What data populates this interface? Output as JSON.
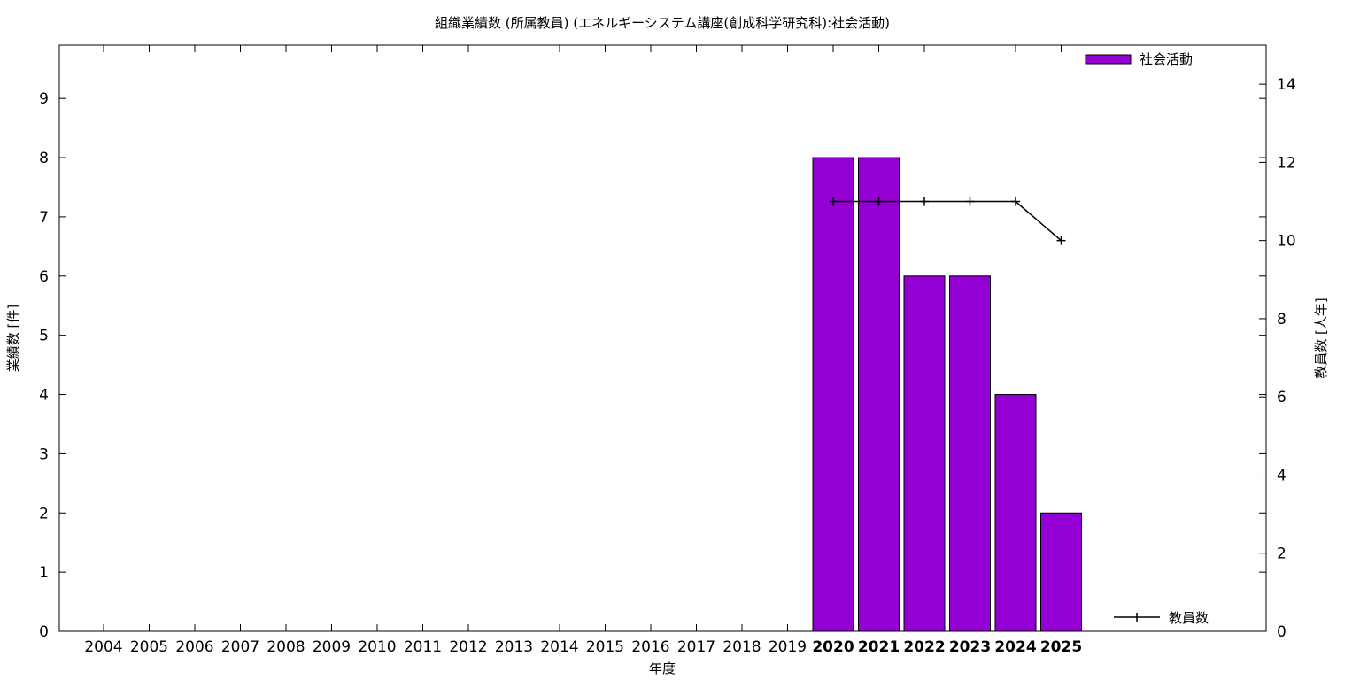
{
  "chart_data": {
    "type": "bar",
    "title": "組織業績数 (所属教員) (エネルギーシステム講座(創成科学研究科):社会活動)",
    "xlabel": "年度",
    "ylabel": "業績数 [件]",
    "y2label": "教員数 [人年]",
    "categories": [
      "2004",
      "2005",
      "2006",
      "2007",
      "2008",
      "2009",
      "2010",
      "2011",
      "2012",
      "2013",
      "2014",
      "2015",
      "2016",
      "2017",
      "2018",
      "2019",
      "2020",
      "2021",
      "2022",
      "2023",
      "2024",
      "2025"
    ],
    "ylim": [
      0,
      9.9
    ],
    "y2lim": [
      0,
      15
    ],
    "yticks": [
      0,
      1,
      2,
      3,
      4,
      5,
      6,
      7,
      8,
      9
    ],
    "y2ticks": [
      0,
      2,
      4,
      6,
      8,
      10,
      12,
      14
    ],
    "grid": false,
    "series": [
      {
        "name": "社会活動",
        "type": "bar",
        "axis": "left",
        "color": "#9400d3",
        "values": [
          null,
          null,
          null,
          null,
          null,
          null,
          null,
          null,
          null,
          null,
          null,
          null,
          null,
          null,
          null,
          null,
          8,
          8,
          6,
          6,
          4,
          2
        ]
      },
      {
        "name": "教員数",
        "type": "line",
        "axis": "right",
        "color": "#000000",
        "values": [
          null,
          null,
          null,
          null,
          null,
          null,
          null,
          null,
          null,
          null,
          null,
          null,
          null,
          null,
          null,
          null,
          11,
          11,
          11,
          11,
          11,
          10
        ]
      }
    ],
    "legend": [
      {
        "label": "社会活動",
        "placement": "top-right"
      },
      {
        "label": "教員数",
        "placement": "bottom-right"
      }
    ]
  }
}
